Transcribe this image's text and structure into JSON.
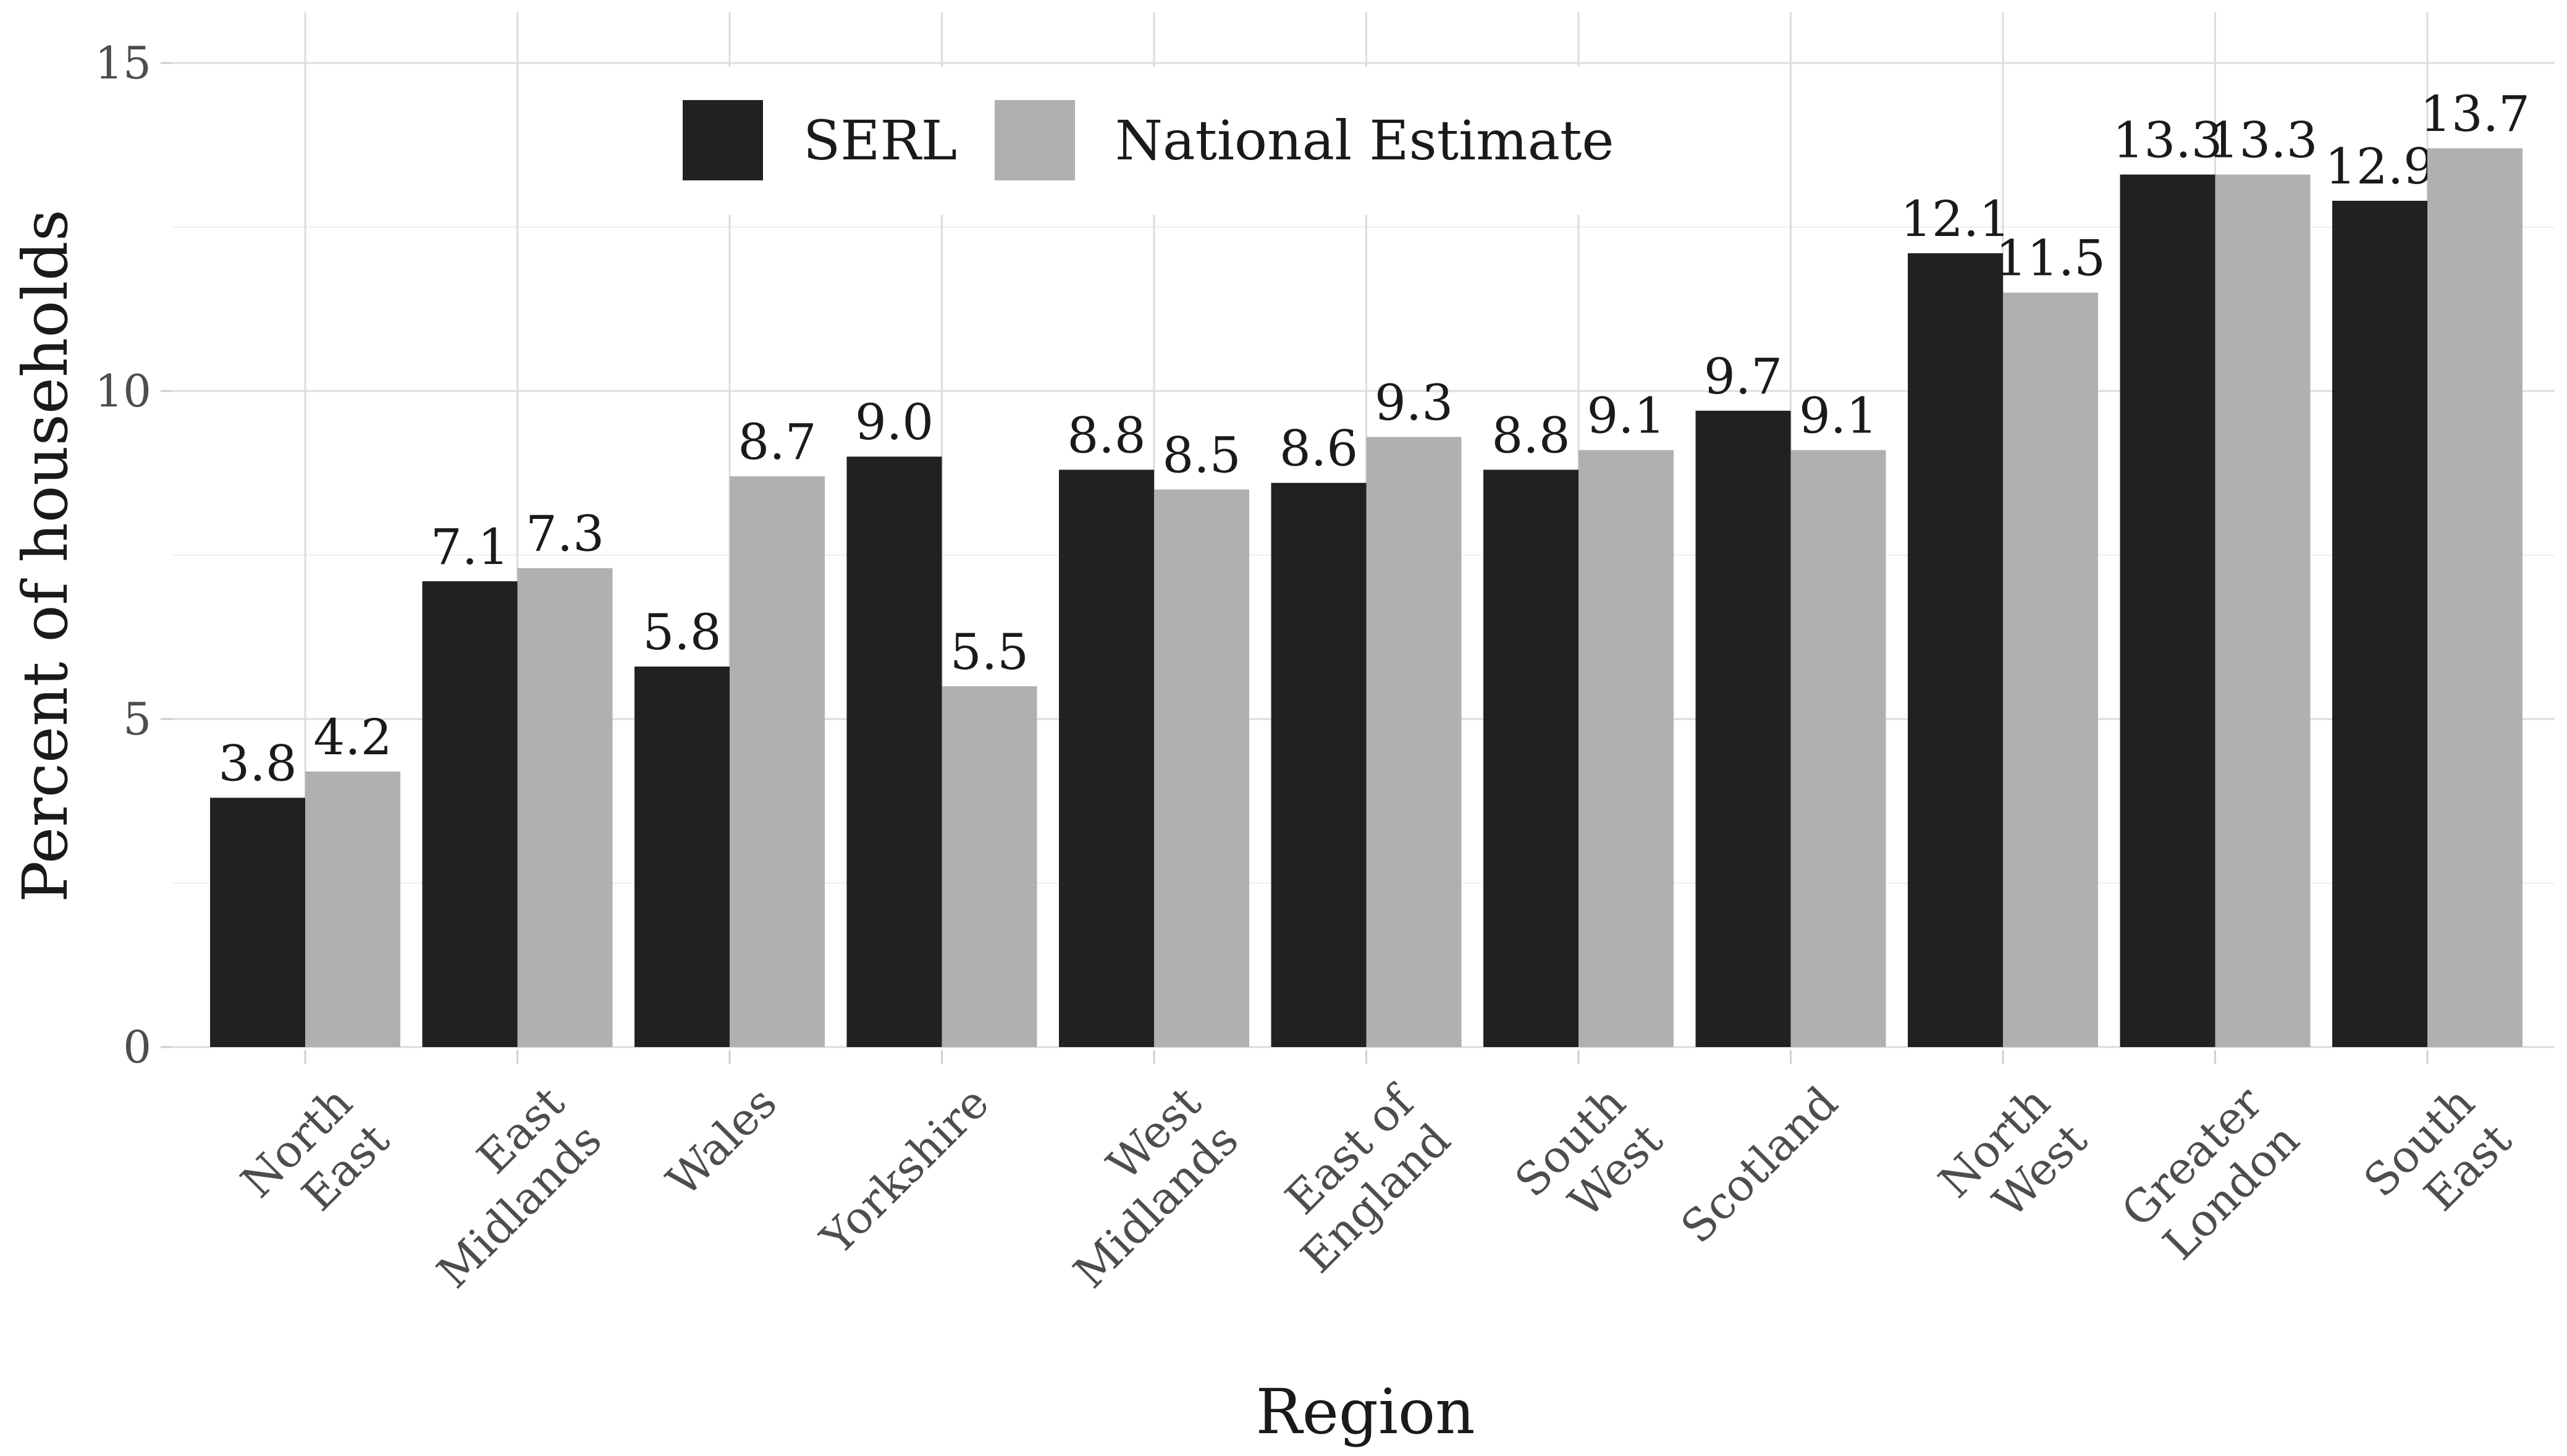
{
  "chart_data": {
    "type": "bar",
    "title": "",
    "xlabel": "Region",
    "ylabel": "Percent of households",
    "ylim": [
      0,
      15
    ],
    "yticks": [
      0,
      5,
      10,
      15
    ],
    "grid": true,
    "legend_position": "top-center",
    "categories": [
      [
        "North",
        "East"
      ],
      [
        "East",
        "Midlands"
      ],
      [
        "Wales"
      ],
      [
        "Yorkshire"
      ],
      [
        "West",
        "Midlands"
      ],
      [
        "East of",
        "England"
      ],
      [
        "South",
        "West"
      ],
      [
        "Scotland"
      ],
      [
        "North",
        "West"
      ],
      [
        "Greater",
        "London"
      ],
      [
        "South",
        "East"
      ]
    ],
    "series": [
      {
        "name": "SERL",
        "color": "#212121",
        "values": [
          3.8,
          7.1,
          5.8,
          9.0,
          8.8,
          8.6,
          8.8,
          9.7,
          12.1,
          13.3,
          12.9
        ],
        "labels": [
          "3.8",
          "7.1",
          "5.8",
          "9.0",
          "8.8",
          "8.6",
          "8.8",
          "9.7",
          "12.1",
          "13.3",
          "12.9"
        ]
      },
      {
        "name": "National Estimate",
        "color": "#b0b0b0",
        "values": [
          4.2,
          7.3,
          8.7,
          5.5,
          8.5,
          9.3,
          9.1,
          9.1,
          11.5,
          13.3,
          13.7
        ],
        "labels": [
          "4.2",
          "7.3",
          "8.7",
          "5.5",
          "8.5",
          "9.3",
          "9.1",
          "9.1",
          "11.5",
          "13.3",
          "13.7"
        ]
      }
    ]
  }
}
